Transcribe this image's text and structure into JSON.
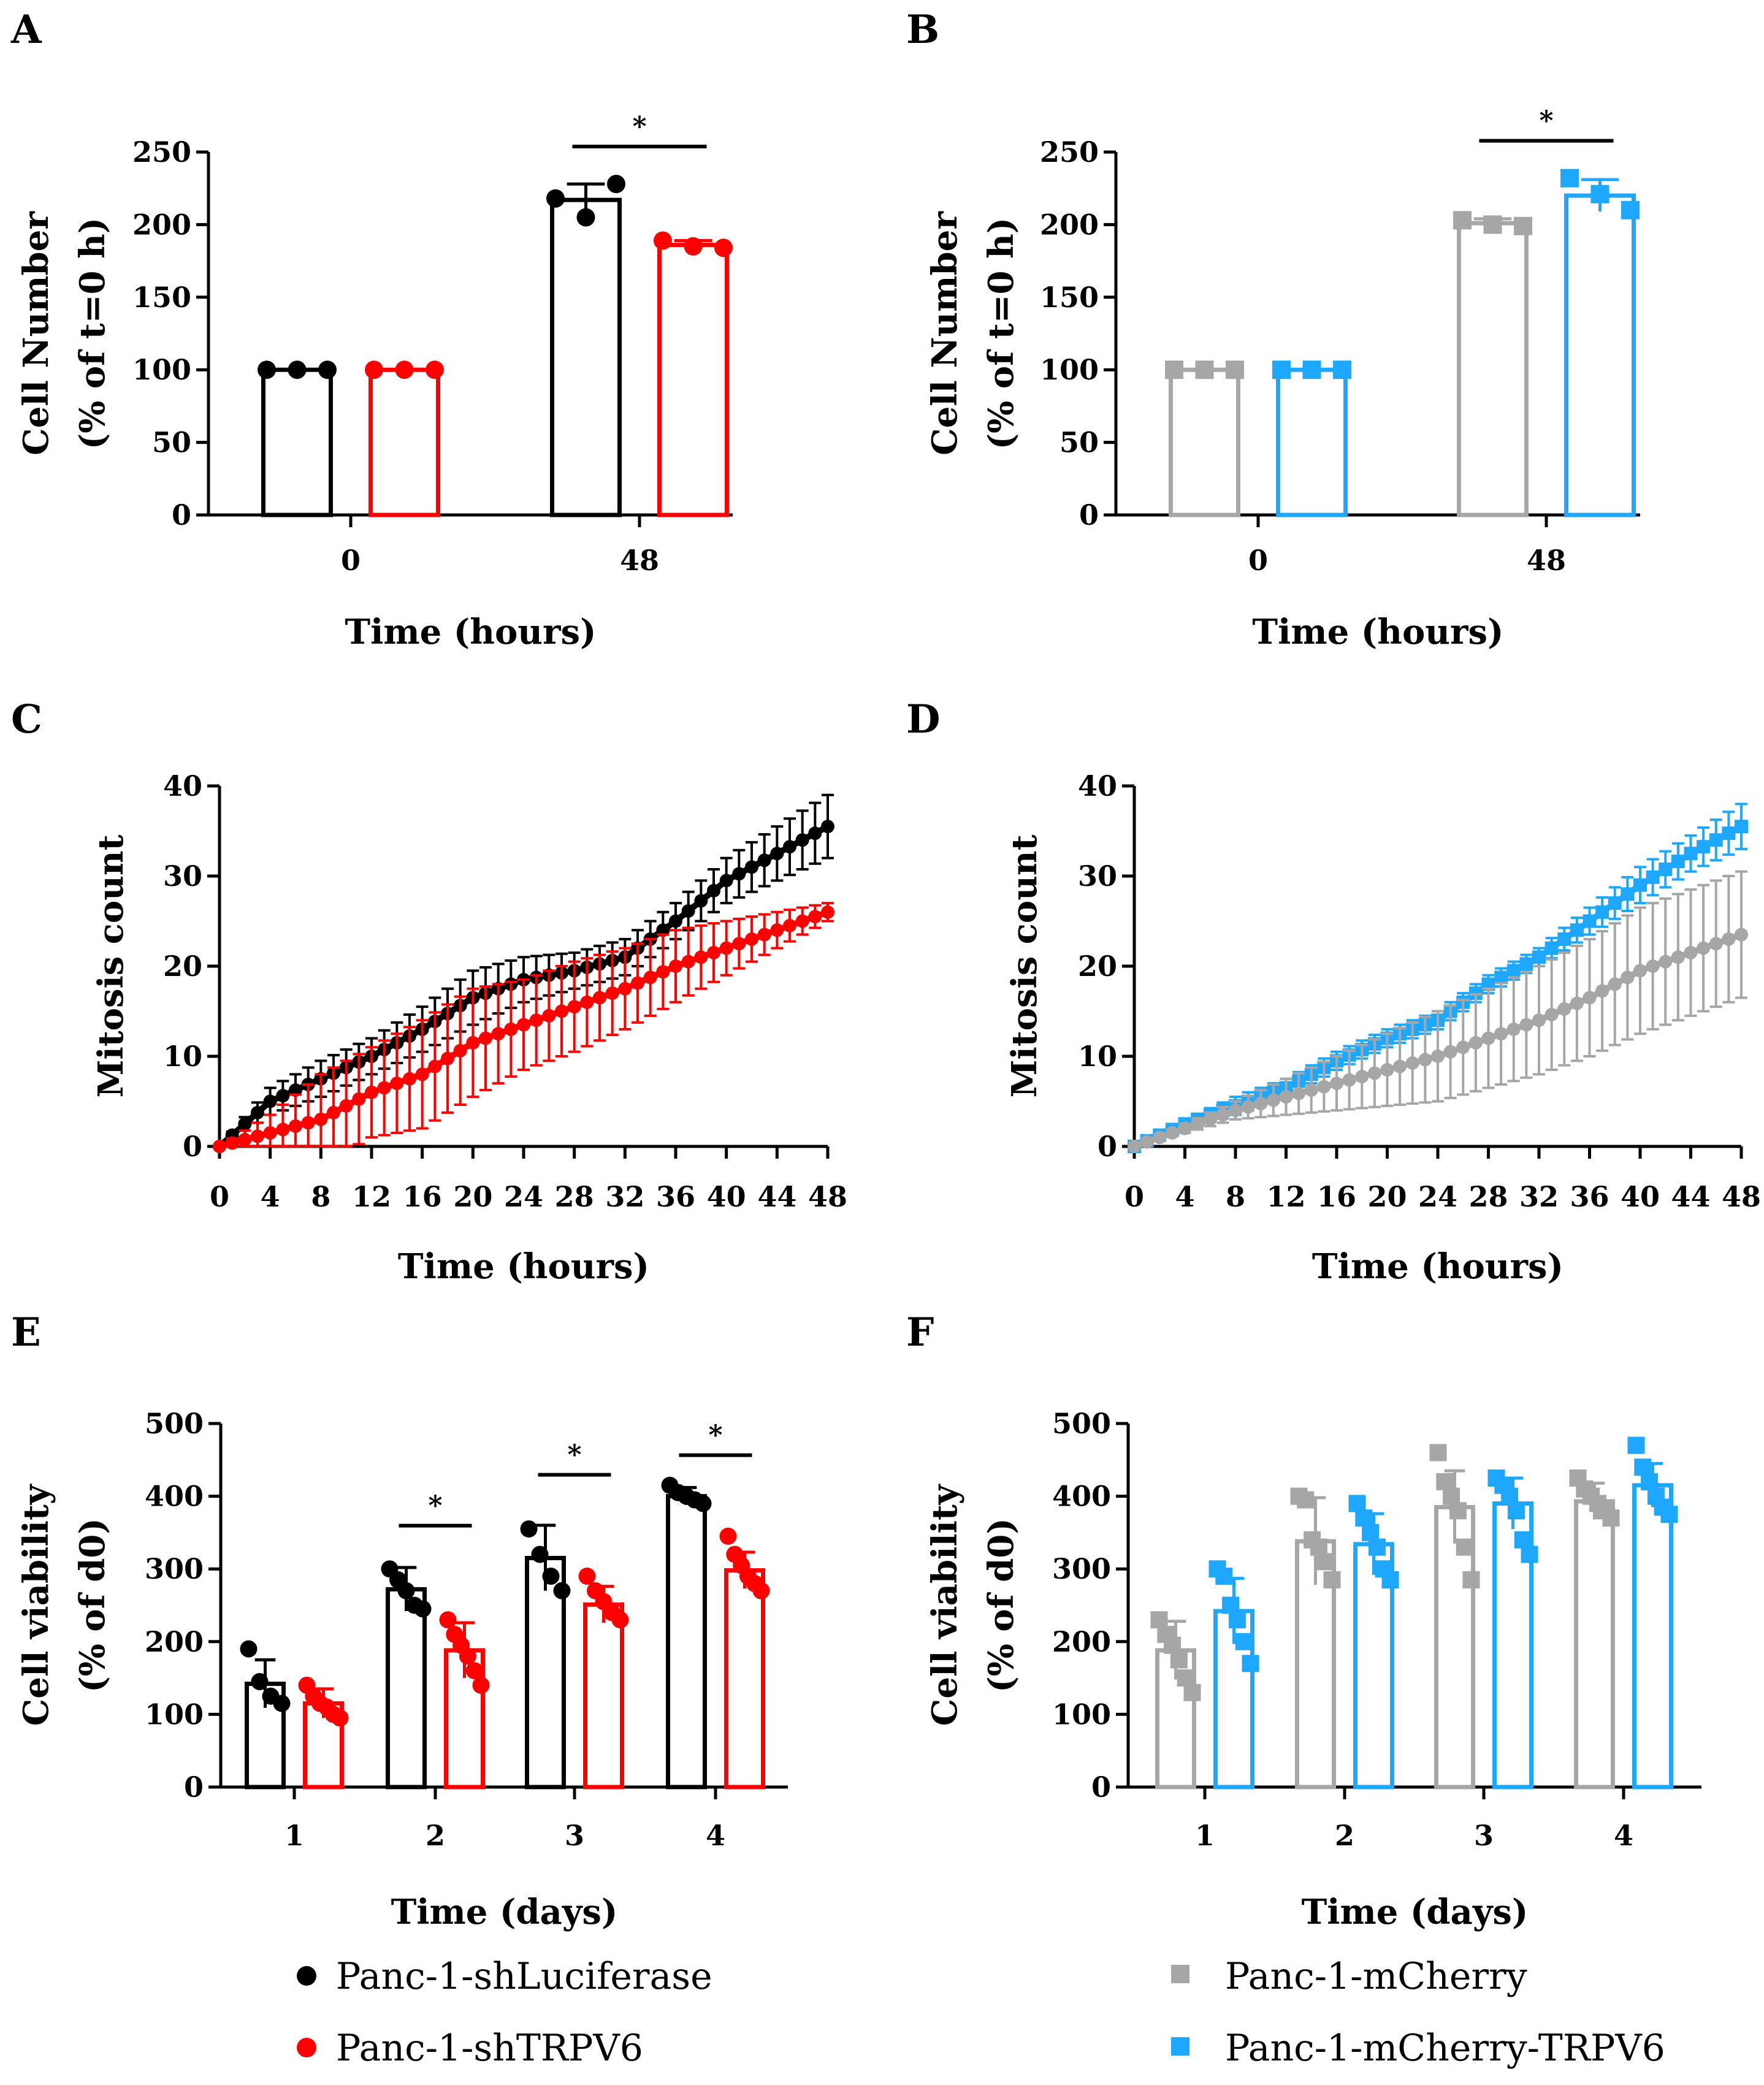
{
  "colors": {
    "black": "#000000",
    "red": "#ff0000",
    "gray": "#a6a6a6",
    "blue": "#1ea7ff"
  },
  "legend": {
    "left": [
      {
        "label": "Panc-1-shLuciferase",
        "color": "#000000",
        "marker": "circle"
      },
      {
        "label": "Panc-1-shTRPV6",
        "color": "#ff0000",
        "marker": "circle"
      }
    ],
    "right": [
      {
        "label": "Panc-1-mCherry",
        "color": "#a6a6a6",
        "marker": "square"
      },
      {
        "label": "Panc-1-mCherry-TRPV6",
        "color": "#1ea7ff",
        "marker": "square"
      }
    ]
  },
  "chart_data": [
    {
      "panel": "A",
      "type": "bar",
      "categories": [
        "0",
        "48"
      ],
      "ylabel": [
        "Cell Number",
        "(% of t=0 h)"
      ],
      "xlabel": "Time (hours)",
      "ylim": [
        0,
        250
      ],
      "yticks": [
        0,
        50,
        100,
        150,
        200,
        250
      ],
      "series": [
        {
          "name": "Panc-1-shLuciferase",
          "color": "#000000",
          "marker": "circle",
          "values": [
            100,
            217
          ],
          "err": [
            0,
            11
          ],
          "points": [
            [
              100,
              100,
              100
            ],
            [
              218,
              205,
              228
            ]
          ]
        },
        {
          "name": "Panc-1-shTRPV6",
          "color": "#ff0000",
          "marker": "circle",
          "values": [
            100,
            186
          ],
          "err": [
            0,
            3
          ],
          "points": [
            [
              100,
              100,
              100
            ],
            [
              189,
              185,
              184
            ]
          ]
        }
      ],
      "significance": [
        {
          "category": "48",
          "label": "*"
        }
      ]
    },
    {
      "panel": "B",
      "type": "bar",
      "categories": [
        "0",
        "48"
      ],
      "ylabel": [
        "Cell Number",
        "(% of t=0 h)"
      ],
      "xlabel": "Time (hours)",
      "ylim": [
        0,
        250
      ],
      "yticks": [
        0,
        50,
        100,
        150,
        200,
        250
      ],
      "series": [
        {
          "name": "Panc-1-mCherry",
          "color": "#a6a6a6",
          "marker": "square",
          "values": [
            100,
            201
          ],
          "err": [
            0,
            3
          ],
          "points": [
            [
              100,
              100,
              100
            ],
            [
              203,
              200,
              199
            ]
          ]
        },
        {
          "name": "Panc-1-mCherry-TRPV6",
          "color": "#1ea7ff",
          "marker": "square",
          "values": [
            100,
            220
          ],
          "err": [
            0,
            11
          ],
          "points": [
            [
              100,
              100,
              100
            ],
            [
              232,
              221,
              210
            ]
          ]
        }
      ],
      "significance": [
        {
          "category": "48",
          "label": "*"
        }
      ]
    },
    {
      "panel": "C",
      "type": "line",
      "xlabel": "Time (hours)",
      "ylabel": "Mitosis count",
      "xlim": [
        0,
        48
      ],
      "ylim": [
        0,
        40
      ],
      "xticks": [
        0,
        4,
        8,
        12,
        16,
        20,
        24,
        28,
        32,
        36,
        40,
        44,
        48
      ],
      "yticks": [
        0,
        10,
        20,
        30,
        40
      ],
      "series": [
        {
          "name": "Panc-1-shLuciferase",
          "color": "#000000",
          "marker": "circle",
          "x": [
            0,
            4,
            8,
            12,
            16,
            20,
            24,
            28,
            32,
            36,
            40,
            44,
            48
          ],
          "y": [
            0,
            5,
            7.5,
            10,
            13,
            16.5,
            18.5,
            19.5,
            21,
            25,
            29.5,
            32.5,
            35.5
          ],
          "err": [
            0,
            1.5,
            2,
            2,
            2.5,
            3,
            2.5,
            2,
            2,
            2,
            2.5,
            3,
            3.5
          ]
        },
        {
          "name": "Panc-1-shTRPV6",
          "color": "#ff0000",
          "marker": "circle",
          "x": [
            0,
            4,
            8,
            12,
            16,
            20,
            24,
            28,
            32,
            36,
            40,
            44,
            48
          ],
          "y": [
            0,
            1.5,
            3,
            6,
            8,
            11.5,
            13.5,
            15.5,
            17.5,
            20,
            22,
            24,
            26
          ],
          "err": [
            0,
            2,
            5,
            5,
            6,
            6,
            5,
            5,
            4.5,
            4,
            3,
            2,
            1
          ]
        }
      ]
    },
    {
      "panel": "D",
      "type": "line",
      "xlabel": "Time (hours)",
      "ylabel": "Mitosis count",
      "xlim": [
        0,
        48
      ],
      "ylim": [
        0,
        40
      ],
      "xticks": [
        0,
        4,
        8,
        12,
        16,
        20,
        24,
        28,
        32,
        36,
        40,
        44,
        48
      ],
      "yticks": [
        0,
        10,
        20,
        30,
        40
      ],
      "series": [
        {
          "name": "Panc-1-mCherry-TRPV6",
          "color": "#1ea7ff",
          "marker": "square",
          "x": [
            0,
            4,
            8,
            12,
            16,
            20,
            24,
            28,
            32,
            36,
            40,
            44,
            48
          ],
          "y": [
            0,
            2.5,
            4.5,
            6.5,
            9.5,
            12,
            14,
            18,
            21,
            25,
            29,
            32.5,
            35.5
          ],
          "err": [
            0,
            0.5,
            1,
            1,
            1,
            1,
            1,
            1,
            1,
            1.5,
            2,
            2,
            2.5
          ]
        },
        {
          "name": "Panc-1-mCherry",
          "color": "#a6a6a6",
          "marker": "circle",
          "x": [
            0,
            4,
            8,
            12,
            16,
            20,
            24,
            28,
            32,
            36,
            40,
            44,
            48
          ],
          "y": [
            0,
            2,
            4,
            5.5,
            7,
            8.5,
            10,
            12,
            14,
            16.5,
            19.5,
            21.5,
            23.5
          ],
          "err": [
            0,
            0.5,
            1,
            2,
            3,
            4,
            5,
            5.5,
            6,
            6.5,
            7,
            7,
            7
          ]
        }
      ]
    },
    {
      "panel": "E",
      "type": "bar",
      "categories": [
        "1",
        "2",
        "3",
        "4"
      ],
      "ylabel": [
        "Cell viability",
        "(% of d0)"
      ],
      "xlabel": "Time (days)",
      "ylim": [
        0,
        500
      ],
      "yticks": [
        0,
        100,
        200,
        300,
        400,
        500
      ],
      "series": [
        {
          "name": "Panc-1-shLuciferase",
          "color": "#000000",
          "marker": "circle",
          "values": [
            142,
            272,
            315,
            400
          ],
          "err": [
            33,
            30,
            45,
            12
          ],
          "points": [
            [
              190,
              145,
              125,
              115
            ],
            [
              300,
              285,
              270,
              250,
              245
            ],
            [
              355,
              320,
              290,
              270
            ],
            [
              415,
              405,
              400,
              395,
              390
            ]
          ]
        },
        {
          "name": "Panc-1-shTRPV6",
          "color": "#ff0000",
          "marker": "circle",
          "values": [
            115,
            188,
            251,
            298
          ],
          "err": [
            20,
            38,
            25,
            25
          ],
          "points": [
            [
              140,
              125,
              115,
              110,
              100,
              95
            ],
            [
              230,
              210,
              195,
              180,
              160,
              140
            ],
            [
              290,
              270,
              255,
              240,
              230
            ],
            [
              345,
              320,
              305,
              290,
              280,
              270
            ]
          ]
        }
      ],
      "significance": [
        {
          "category": "2",
          "label": "*"
        },
        {
          "category": "3",
          "label": "*"
        },
        {
          "category": "4",
          "label": "*"
        }
      ]
    },
    {
      "panel": "F",
      "type": "bar",
      "categories": [
        "1",
        "2",
        "3",
        "4"
      ],
      "ylabel": [
        "Cell viability",
        "(% of d0)"
      ],
      "xlabel": "Time (days)",
      "ylim": [
        0,
        500
      ],
      "yticks": [
        0,
        100,
        200,
        300,
        400,
        500
      ],
      "series": [
        {
          "name": "Panc-1-mCherry",
          "color": "#a6a6a6",
          "marker": "square",
          "values": [
            188,
            338,
            385,
            393
          ],
          "err": [
            40,
            60,
            50,
            25
          ],
          "points": [
            [
              230,
              210,
              195,
              175,
              150,
              130
            ],
            [
              400,
              395,
              340,
              330,
              310,
              285
            ],
            [
              460,
              420,
              400,
              380,
              330,
              285
            ],
            [
              425,
              410,
              400,
              390,
              380,
              370
            ]
          ]
        },
        {
          "name": "Panc-1-mCherry-TRPV6",
          "color": "#1ea7ff",
          "marker": "square",
          "values": [
            242,
            334,
            390,
            415
          ],
          "err": [
            45,
            42,
            35,
            30
          ],
          "points": [
            [
              300,
              290,
              250,
              230,
              200,
              170
            ],
            [
              390,
              370,
              350,
              330,
              300,
              285
            ],
            [
              425,
              415,
              400,
              380,
              340,
              320
            ],
            [
              470,
              440,
              420,
              400,
              385,
              375
            ]
          ]
        }
      ]
    }
  ]
}
